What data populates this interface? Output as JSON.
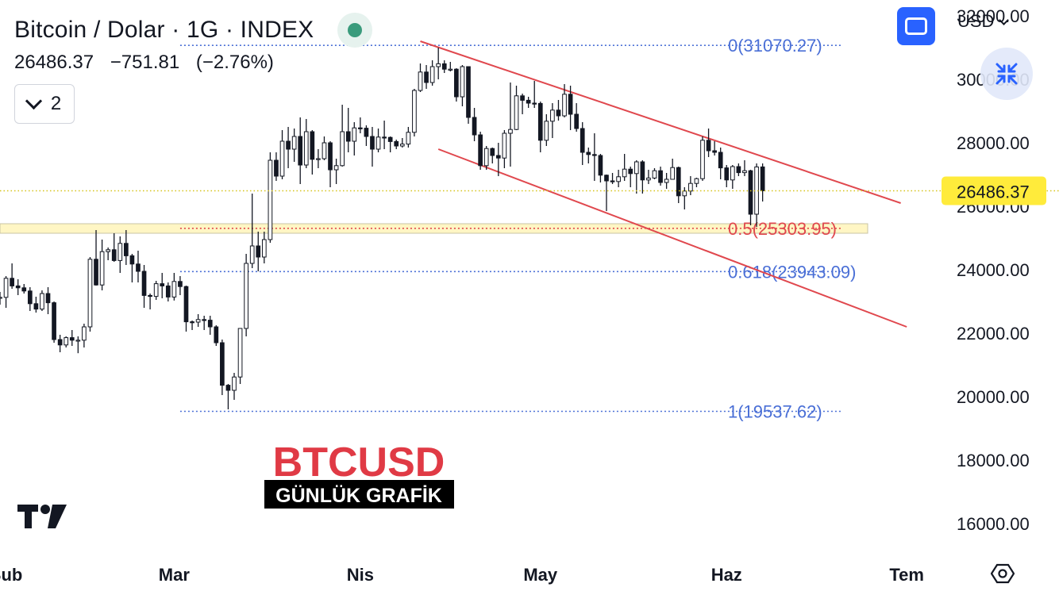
{
  "header": {
    "title": "Bitcoin / Dolar · 1G · INDEX",
    "last_price": "26486.37",
    "change": "−751.81",
    "change_pct": "(−2.76%)",
    "indicators_count": "2",
    "currency": "USD"
  },
  "colors": {
    "candle": "#131722",
    "channel": "#e0484e",
    "fib_blue": "#4a6fd6",
    "fib_red": "#e0484e",
    "last_price_bg": "#ffeb3b",
    "last_price_line": "#d6c31a",
    "zone": "#fff6c4",
    "brand": "#2962ff",
    "caption_red": "#e03a45"
  },
  "overlay": {
    "caption": "BTCUSD",
    "subcaption": "GÜNLÜK GRAFİK",
    "brand_icon": "tradingview-logo",
    "settings_icon": "settings-hexagon-icon"
  },
  "chart_data": {
    "type": "candlestick",
    "y_axis": {
      "range": [
        15000,
        32500
      ],
      "ticks": [
        16000,
        18000,
        20000,
        22000,
        24000,
        26000,
        28000,
        30000,
        32000
      ],
      "tick_labels": [
        "16000.00",
        "18000.00",
        "20000.00",
        "22000.00",
        "24000.00",
        "26000.00",
        "28000.00",
        "30000.00",
        "32000.00"
      ]
    },
    "x_axis": {
      "range": [
        "2023-01-31",
        "2023-07-06"
      ],
      "ticks": [
        "2023-02-01",
        "2023-03-01",
        "2023-04-01",
        "2023-05-01",
        "2023-06-01",
        "2023-07-01"
      ],
      "tick_labels": [
        "Şub",
        "Mar",
        "Nis",
        "May",
        "Haz",
        "Tem"
      ]
    },
    "last_price": {
      "value": 26486.37,
      "label": "26486.37"
    },
    "fibonacci": [
      {
        "ratio": "0",
        "value": 31070.27,
        "label": "0(31070.27)",
        "color": "blue"
      },
      {
        "ratio": "0.5",
        "value": 25303.95,
        "label": "0.5(25303.95)",
        "color": "red"
      },
      {
        "ratio": "0.618",
        "value": 23943.09,
        "label": "0.618(23943.09)",
        "color": "blue"
      },
      {
        "ratio": "1",
        "value": 19537.62,
        "label": "1(19537.62)",
        "color": "blue"
      }
    ],
    "fib_range": {
      "from": "2023-03-02",
      "to": "2023-06-20"
    },
    "support_zone": {
      "from": 25150,
      "to": 25450
    },
    "channel": [
      {
        "from": {
          "date": "2023-04-11",
          "price": 31200
        },
        "to": {
          "date": "2023-06-30",
          "price": 26100
        }
      },
      {
        "from": {
          "date": "2023-04-14",
          "price": 27800
        },
        "to": {
          "date": "2023-07-01",
          "price": 22200
        }
      }
    ],
    "candles": [
      [
        "2023-01-31",
        23120,
        23300,
        22900,
        23130
      ],
      [
        "2023-02-01",
        23130,
        23800,
        22800,
        23730
      ],
      [
        "2023-02-02",
        23730,
        24200,
        23400,
        23490
      ],
      [
        "2023-02-03",
        23490,
        23700,
        23200,
        23430
      ],
      [
        "2023-02-04",
        23430,
        23550,
        23250,
        23330
      ],
      [
        "2023-02-05",
        23330,
        23450,
        22700,
        22930
      ],
      [
        "2023-02-06",
        22930,
        23150,
        22650,
        22760
      ],
      [
        "2023-02-07",
        22760,
        23350,
        22700,
        23250
      ],
      [
        "2023-02-08",
        23250,
        23450,
        22600,
        22960
      ],
      [
        "2023-02-09",
        22960,
        23000,
        21700,
        21800
      ],
      [
        "2023-02-10",
        21800,
        21950,
        21400,
        21630
      ],
      [
        "2023-02-11",
        21630,
        21900,
        21550,
        21860
      ],
      [
        "2023-02-12",
        21860,
        22100,
        21600,
        21780
      ],
      [
        "2023-02-13",
        21780,
        21900,
        21370,
        21780
      ],
      [
        "2023-02-14",
        21780,
        22300,
        21550,
        22200
      ],
      [
        "2023-02-15",
        22200,
        24400,
        22050,
        24330
      ],
      [
        "2023-02-16",
        24330,
        25250,
        23500,
        23520
      ],
      [
        "2023-02-17",
        23520,
        24950,
        23350,
        24570
      ],
      [
        "2023-02-18",
        24570,
        24700,
        24300,
        24630
      ],
      [
        "2023-02-19",
        24630,
        25150,
        24250,
        24290
      ],
      [
        "2023-02-20",
        24290,
        25050,
        23900,
        24830
      ],
      [
        "2023-02-21",
        24830,
        25250,
        24150,
        24440
      ],
      [
        "2023-02-22",
        24440,
        24500,
        23600,
        24180
      ],
      [
        "2023-02-23",
        24180,
        24600,
        23600,
        23950
      ],
      [
        "2023-02-24",
        23950,
        24150,
        22800,
        23190
      ],
      [
        "2023-02-25",
        23190,
        23250,
        22750,
        23160
      ],
      [
        "2023-02-26",
        23160,
        23650,
        23050,
        23560
      ],
      [
        "2023-02-27",
        23560,
        23900,
        23100,
        23490
      ],
      [
        "2023-02-28",
        23490,
        23600,
        23000,
        23140
      ],
      [
        "2023-03-01",
        23140,
        23900,
        23030,
        23630
      ],
      [
        "2023-03-02",
        23630,
        23800,
        23200,
        23470
      ],
      [
        "2023-03-03",
        23470,
        23500,
        22050,
        22360
      ],
      [
        "2023-03-04",
        22360,
        22400,
        22100,
        22350
      ],
      [
        "2023-03-05",
        22350,
        22600,
        22200,
        22430
      ],
      [
        "2023-03-06",
        22430,
        22550,
        22100,
        22410
      ],
      [
        "2023-03-07",
        22410,
        22550,
        21950,
        22200
      ],
      [
        "2023-03-08",
        22200,
        22250,
        21600,
        21700
      ],
      [
        "2023-03-09",
        21700,
        21800,
        20050,
        20360
      ],
      [
        "2023-03-10",
        20360,
        20400,
        19600,
        20200
      ],
      [
        "2023-03-11",
        20200,
        20750,
        19900,
        20620
      ],
      [
        "2023-03-12",
        20620,
        22100,
        20400,
        22150
      ],
      [
        "2023-03-13",
        22150,
        24500,
        21900,
        24200
      ],
      [
        "2023-03-14",
        24200,
        26400,
        24050,
        24750
      ],
      [
        "2023-03-15",
        24750,
        25200,
        23950,
        24400
      ],
      [
        "2023-03-16",
        24400,
        25200,
        24200,
        24950
      ],
      [
        "2023-03-17",
        24950,
        27700,
        24850,
        27450
      ],
      [
        "2023-03-18",
        27450,
        27700,
        26800,
        26950
      ],
      [
        "2023-03-19",
        26950,
        28400,
        26850,
        28050
      ],
      [
        "2023-03-20",
        28050,
        28500,
        27200,
        27800
      ],
      [
        "2023-03-21",
        27800,
        28450,
        27400,
        28200
      ],
      [
        "2023-03-22",
        28200,
        28800,
        26700,
        27300
      ],
      [
        "2023-03-23",
        27300,
        28750,
        27200,
        28350
      ],
      [
        "2023-03-24",
        28350,
        28400,
        27000,
        27480
      ],
      [
        "2023-03-25",
        27480,
        27800,
        27200,
        27500
      ],
      [
        "2023-03-26",
        27500,
        28200,
        27450,
        28000
      ],
      [
        "2023-03-27",
        28000,
        28050,
        26600,
        27150
      ],
      [
        "2023-03-28",
        27150,
        27500,
        26700,
        27280
      ],
      [
        "2023-03-29",
        27280,
        29200,
        27250,
        28350
      ],
      [
        "2023-03-30",
        28350,
        29100,
        27700,
        28050
      ],
      [
        "2023-03-31",
        28050,
        28650,
        27600,
        28470
      ],
      [
        "2023-04-01",
        28470,
        28800,
        28300,
        28460
      ],
      [
        "2023-04-02",
        28460,
        28550,
        27900,
        28200
      ],
      [
        "2023-04-03",
        28200,
        28500,
        27250,
        27800
      ],
      [
        "2023-04-04",
        27800,
        28450,
        27700,
        28180
      ],
      [
        "2023-04-05",
        28180,
        28700,
        27800,
        28170
      ],
      [
        "2023-04-06",
        28170,
        28200,
        27700,
        28040
      ],
      [
        "2023-04-07",
        28040,
        28100,
        27800,
        27900
      ],
      [
        "2023-04-08",
        27900,
        28150,
        27850,
        27960
      ],
      [
        "2023-04-09",
        27960,
        28500,
        27850,
        28330
      ],
      [
        "2023-04-10",
        28330,
        29700,
        28200,
        29650
      ],
      [
        "2023-04-11",
        29650,
        30500,
        29600,
        30230
      ],
      [
        "2023-04-12",
        30230,
        30450,
        29700,
        29900
      ],
      [
        "2023-04-13",
        29900,
        30600,
        29800,
        30400
      ],
      [
        "2023-04-14",
        30400,
        31000,
        30000,
        30490
      ],
      [
        "2023-04-15",
        30490,
        30600,
        30200,
        30320
      ],
      [
        "2023-04-16",
        30320,
        30550,
        30250,
        30320
      ],
      [
        "2023-04-17",
        30320,
        30350,
        29300,
        29450
      ],
      [
        "2023-04-18",
        29450,
        30450,
        29150,
        30400
      ],
      [
        "2023-04-19",
        30400,
        30400,
        28600,
        28800
      ],
      [
        "2023-04-20",
        28800,
        29100,
        28050,
        28250
      ],
      [
        "2023-04-21",
        28250,
        28350,
        27150,
        27280
      ],
      [
        "2023-04-22",
        27280,
        27900,
        27150,
        27820
      ],
      [
        "2023-04-23",
        27820,
        27850,
        27350,
        27600
      ],
      [
        "2023-04-24",
        27600,
        28000,
        26950,
        27520
      ],
      [
        "2023-04-25",
        27520,
        28400,
        27200,
        28300
      ],
      [
        "2023-04-26",
        28300,
        29900,
        27250,
        28420
      ],
      [
        "2023-04-27",
        28420,
        29800,
        28400,
        29480
      ],
      [
        "2023-04-28",
        29480,
        29550,
        28900,
        29340
      ],
      [
        "2023-04-29",
        29340,
        29450,
        29100,
        29250
      ],
      [
        "2023-04-30",
        29250,
        29950,
        29100,
        29240
      ],
      [
        "2023-05-01",
        29240,
        29300,
        27700,
        28080
      ],
      [
        "2023-05-02",
        28080,
        28900,
        27900,
        28680
      ],
      [
        "2023-05-03",
        28680,
        29250,
        28150,
        29030
      ],
      [
        "2023-05-04",
        29030,
        29350,
        28700,
        28850
      ],
      [
        "2023-05-05",
        28850,
        29850,
        28800,
        29530
      ],
      [
        "2023-05-06",
        29530,
        29800,
        28400,
        28900
      ],
      [
        "2023-05-07",
        28900,
        29250,
        28350,
        28450
      ],
      [
        "2023-05-08",
        28450,
        28650,
        27300,
        27700
      ],
      [
        "2023-05-09",
        27700,
        27850,
        27350,
        27630
      ],
      [
        "2023-05-10",
        27630,
        28300,
        26800,
        27600
      ],
      [
        "2023-05-11",
        27600,
        27650,
        26750,
        26980
      ],
      [
        "2023-05-12",
        26980,
        27000,
        25850,
        26800
      ],
      [
        "2023-05-13",
        26800,
        27050,
        26700,
        26780
      ],
      [
        "2023-05-14",
        26780,
        27150,
        26600,
        26930
      ],
      [
        "2023-05-15",
        26930,
        27650,
        26800,
        27170
      ],
      [
        "2023-05-16",
        27170,
        27250,
        26600,
        27030
      ],
      [
        "2023-05-17",
        27030,
        27450,
        26400,
        27400
      ],
      [
        "2023-05-18",
        27400,
        27450,
        26400,
        26830
      ],
      [
        "2023-05-19",
        26830,
        27150,
        26700,
        26890
      ],
      [
        "2023-05-20",
        26890,
        27200,
        26850,
        27120
      ],
      [
        "2023-05-21",
        27120,
        27250,
        26650,
        26750
      ],
      [
        "2023-05-22",
        26750,
        27050,
        26550,
        26850
      ],
      [
        "2023-05-23",
        26850,
        27500,
        26850,
        27220
      ],
      [
        "2023-05-24",
        27220,
        27250,
        26100,
        26330
      ],
      [
        "2023-05-25",
        26330,
        26600,
        25900,
        26480
      ],
      [
        "2023-05-26",
        26480,
        26950,
        26350,
        26720
      ],
      [
        "2023-05-27",
        26720,
        26900,
        26600,
        26870
      ],
      [
        "2023-05-28",
        26870,
        28200,
        26800,
        28080
      ],
      [
        "2023-05-29",
        28080,
        28450,
        27550,
        27750
      ],
      [
        "2023-05-30",
        27750,
        28050,
        27600,
        27700
      ],
      [
        "2023-05-31",
        27700,
        27850,
        26850,
        27210
      ],
      [
        "2023-06-01",
        27210,
        27300,
        26600,
        26830
      ],
      [
        "2023-06-02",
        26830,
        27300,
        26550,
        27250
      ],
      [
        "2023-06-03",
        27250,
        27350,
        26950,
        27060
      ],
      [
        "2023-06-04",
        27060,
        27450,
        26950,
        27120
      ],
      [
        "2023-06-05",
        27120,
        27150,
        25400,
        25750
      ],
      [
        "2023-06-06",
        25750,
        27350,
        25350,
        27240
      ],
      [
        "2023-06-07",
        27240,
        27350,
        26150,
        26490
      ]
    ]
  }
}
